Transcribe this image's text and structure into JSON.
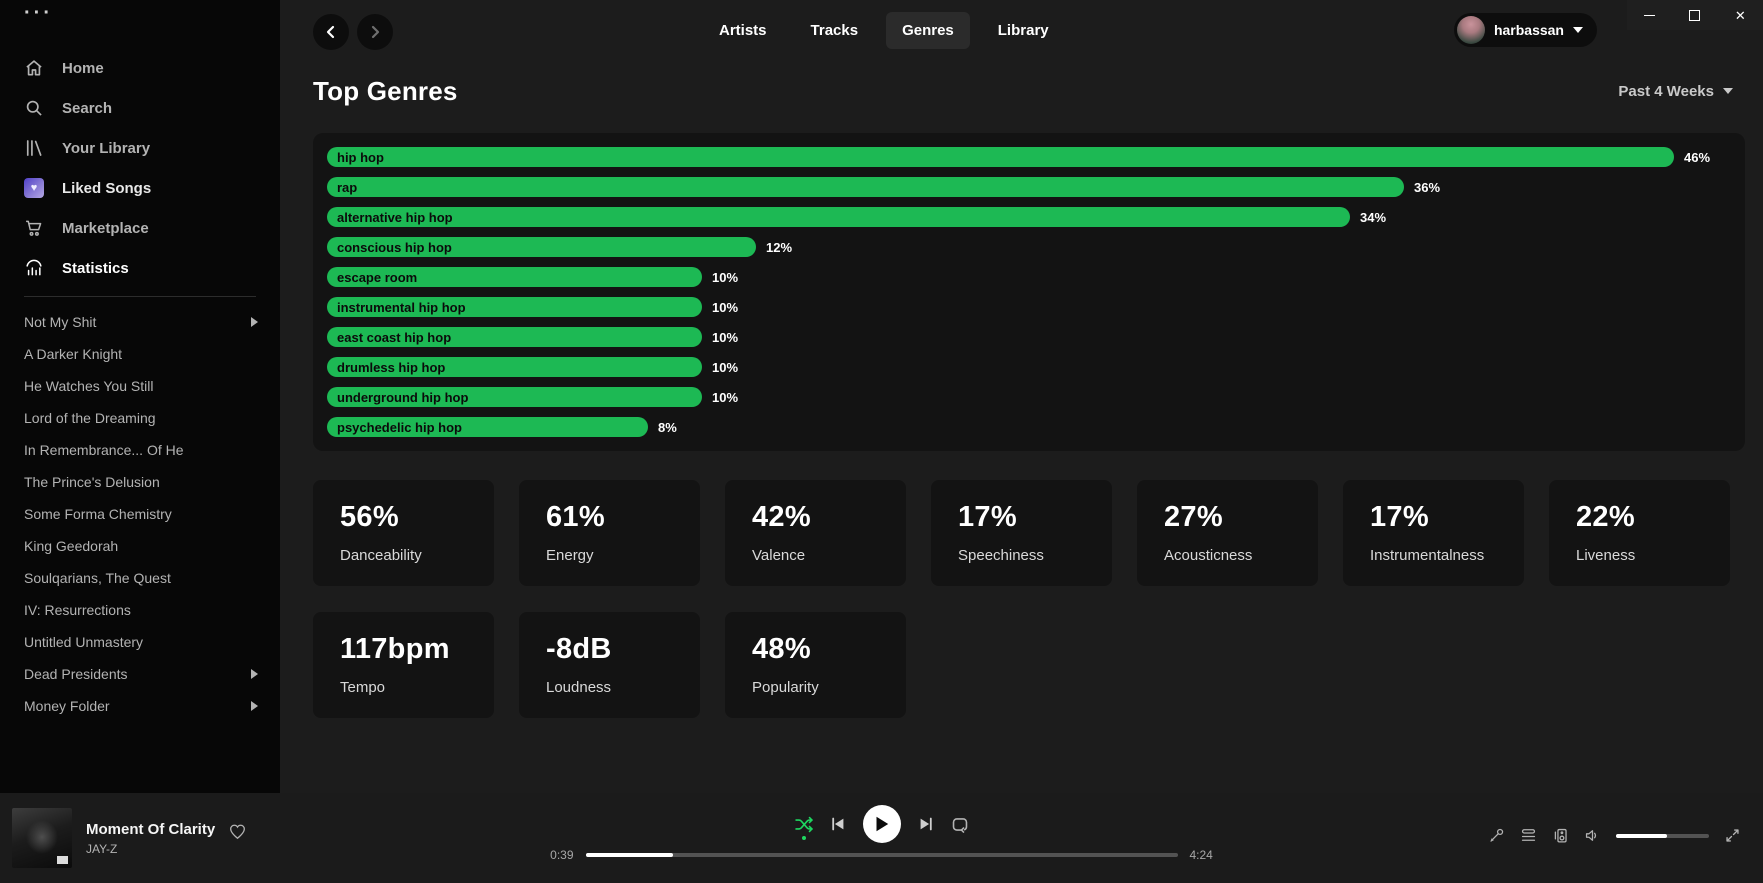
{
  "window": {
    "menu_glyph": "···",
    "close_glyph": "✕"
  },
  "sidebar": {
    "menu": [
      {
        "label": "Home",
        "icon": "home-icon"
      },
      {
        "label": "Search",
        "icon": "search-icon"
      },
      {
        "label": "Your Library",
        "icon": "library-icon"
      },
      {
        "label": "Liked Songs",
        "icon": "liked-songs-icon",
        "heart_glyph": "♥"
      },
      {
        "label": "Marketplace",
        "icon": "cart-icon"
      },
      {
        "label": "Statistics",
        "icon": "stats-icon",
        "active": true
      }
    ],
    "playlists": [
      {
        "label": "Not My Shit",
        "expandable": true
      },
      {
        "label": "A Darker Knight"
      },
      {
        "label": "He Watches You Still"
      },
      {
        "label": "Lord of the Dreaming"
      },
      {
        "label": "In Remembrance... Of He"
      },
      {
        "label": "The Prince's Delusion"
      },
      {
        "label": "Some Forma Chemistry"
      },
      {
        "label": "King Geedorah"
      },
      {
        "label": "Soulqarians, The Quest"
      },
      {
        "label": "IV: Resurrections"
      },
      {
        "label": "Untitled Unmastery"
      },
      {
        "label": "Dead Presidents",
        "expandable": true
      },
      {
        "label": "Money Folder",
        "expandable": true
      }
    ]
  },
  "topnav": {
    "tabs": [
      {
        "label": "Artists"
      },
      {
        "label": "Tracks"
      },
      {
        "label": "Genres",
        "active": true
      },
      {
        "label": "Library"
      }
    ],
    "user": "harbassan"
  },
  "page": {
    "title": "Top Genres",
    "time_range": "Past 4 Weeks"
  },
  "chart_data": {
    "type": "bar",
    "orientation": "horizontal",
    "title": "Top Genres",
    "categories": [
      "hip hop",
      "rap",
      "alternative hip hop",
      "conscious hip hop",
      "escape room",
      "instrumental hip hop",
      "east coast hip hop",
      "drumless hip hop",
      "underground hip hop",
      "psychedelic hip hop"
    ],
    "values": [
      46,
      36,
      34,
      12,
      10,
      10,
      10,
      10,
      10,
      8
    ],
    "value_labels": [
      "46%",
      "36%",
      "34%",
      "12%",
      "10%",
      "10%",
      "10%",
      "10%",
      "10%",
      "8%"
    ],
    "unit": "%",
    "xlim": [
      0,
      46
    ],
    "bar_color": "#1db954",
    "legend": "none",
    "grid": false
  },
  "stats_cards": [
    {
      "value": "56%",
      "label": "Danceability"
    },
    {
      "value": "61%",
      "label": "Energy"
    },
    {
      "value": "42%",
      "label": "Valence"
    },
    {
      "value": "17%",
      "label": "Speechiness"
    },
    {
      "value": "27%",
      "label": "Acousticness"
    },
    {
      "value": "17%",
      "label": "Instrumentalness"
    },
    {
      "value": "22%",
      "label": "Liveness"
    },
    {
      "value": "117bpm",
      "label": "Tempo"
    },
    {
      "value": "-8dB",
      "label": "Loudness"
    },
    {
      "value": "48%",
      "label": "Popularity"
    }
  ],
  "player": {
    "track": "Moment Of Clarity",
    "artist": "JAY-Z",
    "elapsed": "0:39",
    "duration": "4:24",
    "progress_percent": 14.8,
    "volume_percent": 55,
    "shuffle_active": true,
    "accent_color": "#1ed760"
  }
}
